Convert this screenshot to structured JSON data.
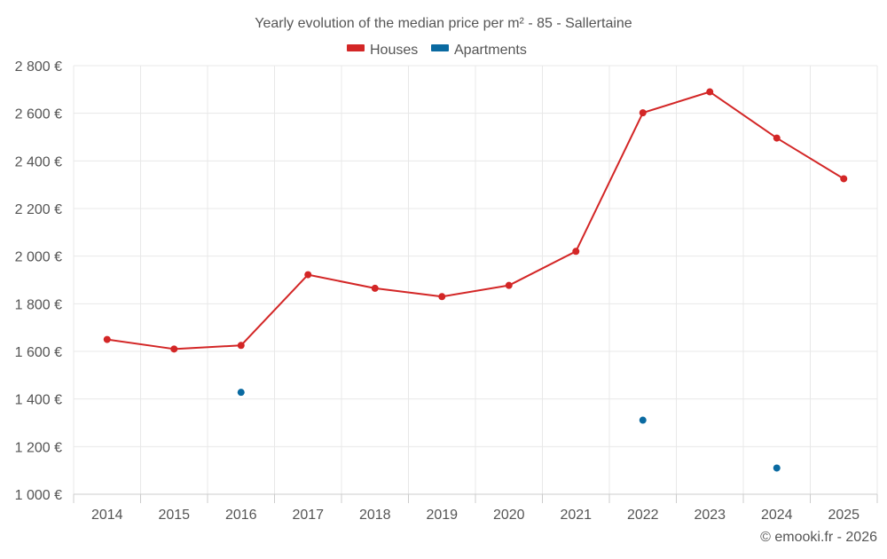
{
  "chart_data": {
    "type": "line",
    "title": "Yearly evolution of the median price per m² - 85 - Sallertaine",
    "xlabel": "",
    "ylabel": "",
    "categories": [
      "2014",
      "2015",
      "2016",
      "2017",
      "2018",
      "2019",
      "2020",
      "2021",
      "2022",
      "2023",
      "2024",
      "2025"
    ],
    "ylim": [
      1000,
      2800
    ],
    "yticks": [
      1000,
      1200,
      1400,
      1600,
      1800,
      2000,
      2200,
      2400,
      2600,
      2800
    ],
    "ytick_labels": [
      "1 000 €",
      "1 200 €",
      "1 400 €",
      "1 600 €",
      "1 800 €",
      "2 000 €",
      "2 200 €",
      "2 400 €",
      "2 600 €",
      "2 800 €"
    ],
    "grid": true,
    "legend_position": "top-center",
    "series": [
      {
        "name": "Houses",
        "color": "#d32626",
        "values": [
          1650,
          1610,
          1625,
          1922,
          1865,
          1830,
          1877,
          2020,
          2602,
          2690,
          2496,
          2325
        ]
      },
      {
        "name": "Apartments",
        "color": "#0a6aa1",
        "values": [
          null,
          null,
          1428,
          null,
          null,
          null,
          null,
          null,
          1311,
          null,
          1110,
          null
        ]
      }
    ],
    "credit": "© emooki.fr - 2026"
  }
}
